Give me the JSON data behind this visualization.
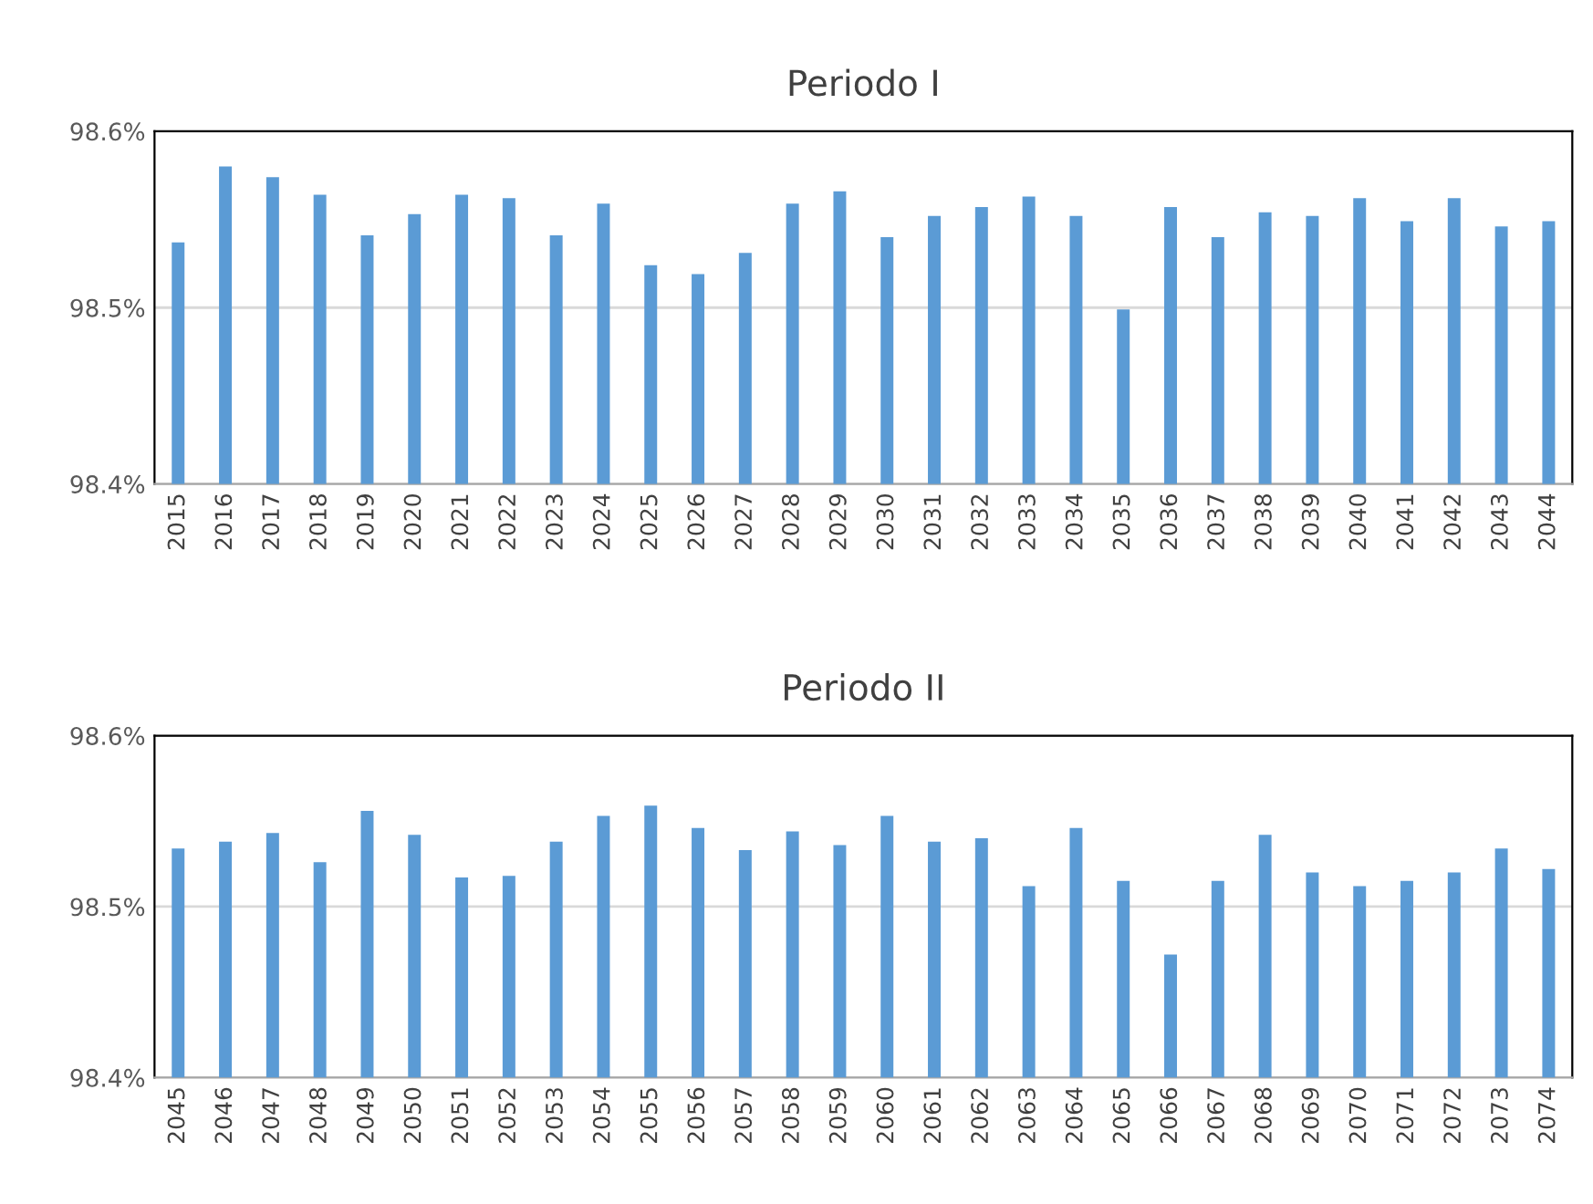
{
  "chart_data": [
    {
      "type": "bar",
      "title": "Periodo I",
      "color": "#5b9bd5",
      "grid": "y",
      "legend": false,
      "categories": [
        "2015",
        "2016",
        "2017",
        "2018",
        "2019",
        "2020",
        "2021",
        "2022",
        "2023",
        "2024",
        "2025",
        "2026",
        "2027",
        "2028",
        "2029",
        "2030",
        "2031",
        "2032",
        "2033",
        "2034",
        "2035",
        "2036",
        "2037",
        "2038",
        "2039",
        "2040",
        "2041",
        "2042",
        "2043",
        "2044"
      ],
      "values": [
        98.537,
        98.58,
        98.574,
        98.564,
        98.541,
        98.553,
        98.564,
        98.562,
        98.541,
        98.559,
        98.524,
        98.519,
        98.531,
        98.559,
        98.566,
        98.54,
        98.552,
        98.557,
        98.563,
        98.552,
        98.499,
        98.557,
        98.54,
        98.554,
        98.552,
        98.562,
        98.549,
        98.562,
        98.546,
        98.549
      ],
      "ylim": [
        98.4,
        98.6
      ],
      "yticks": [
        {
          "value": 98.4,
          "label": "98.4%"
        },
        {
          "value": 98.5,
          "label": "98.5%"
        },
        {
          "value": 98.6,
          "label": "98.6%"
        }
      ]
    },
    {
      "type": "bar",
      "title": "Periodo II",
      "color": "#5b9bd5",
      "grid": "y",
      "legend": false,
      "categories": [
        "2045",
        "2046",
        "2047",
        "2048",
        "2049",
        "2050",
        "2051",
        "2052",
        "2053",
        "2054",
        "2055",
        "2056",
        "2057",
        "2058",
        "2059",
        "2060",
        "2061",
        "2062",
        "2063",
        "2064",
        "2065",
        "2066",
        "2067",
        "2068",
        "2069",
        "2070",
        "2071",
        "2072",
        "2073",
        "2074"
      ],
      "values": [
        98.534,
        98.538,
        98.543,
        98.526,
        98.556,
        98.542,
        98.517,
        98.518,
        98.538,
        98.553,
        98.559,
        98.546,
        98.533,
        98.544,
        98.536,
        98.553,
        98.538,
        98.54,
        98.512,
        98.546,
        98.515,
        98.472,
        98.515,
        98.542,
        98.52,
        98.512,
        98.515,
        98.52,
        98.534,
        98.522
      ],
      "ylim": [
        98.4,
        98.6
      ],
      "yticks": [
        {
          "value": 98.4,
          "label": "98.4%"
        },
        {
          "value": 98.5,
          "label": "98.5%"
        },
        {
          "value": 98.6,
          "label": "98.6%"
        }
      ]
    }
  ]
}
